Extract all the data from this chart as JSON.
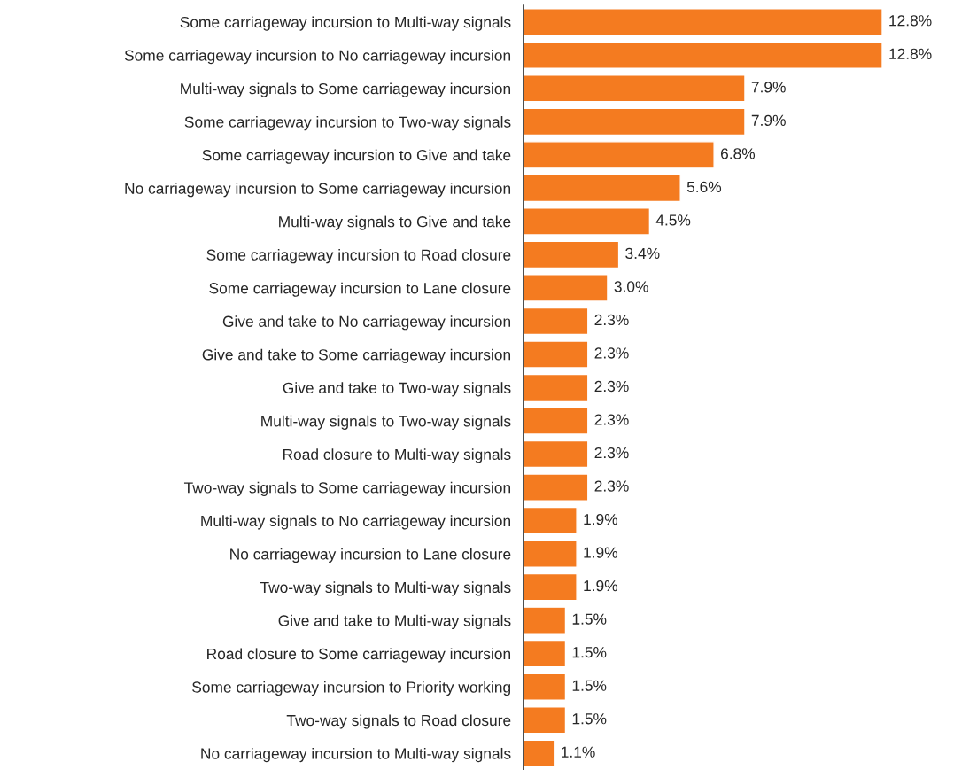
{
  "chart_data": {
    "type": "bar",
    "orientation": "horizontal",
    "color": "#f47b20",
    "categories": [
      "Some carriageway incursion to Multi-way signals",
      "Some carriageway incursion to No carriageway incursion",
      "Multi-way signals to Some carriageway incursion",
      "Some carriageway incursion to Two-way signals",
      "Some carriageway incursion to Give and take",
      "No carriageway incursion to Some carriageway incursion",
      "Multi-way signals to Give and take",
      "Some carriageway incursion to Road closure",
      "Some carriageway incursion to Lane closure",
      "Give and take to No carriageway incursion",
      "Give and take to Some carriageway incursion",
      "Give and take to Two-way signals",
      "Multi-way signals to Two-way signals",
      "Road closure to Multi-way signals",
      "Two-way signals to Some carriageway incursion",
      "Multi-way signals to No carriageway incursion",
      "No carriageway incursion to Lane closure",
      "Two-way signals to Multi-way signals",
      "Give and take to Multi-way signals",
      "Road closure to Some carriageway incursion",
      "Some carriageway incursion to Priority working",
      "Two-way signals to Road closure",
      "No carriageway incursion to Multi-way signals"
    ],
    "values": [
      12.8,
      12.8,
      7.9,
      7.9,
      6.8,
      5.6,
      4.5,
      3.4,
      3.0,
      2.3,
      2.3,
      2.3,
      2.3,
      2.3,
      2.3,
      1.9,
      1.9,
      1.9,
      1.5,
      1.5,
      1.5,
      1.5,
      1.1
    ],
    "value_labels": [
      "12.8%",
      "12.8%",
      "7.9%",
      "7.9%",
      "6.8%",
      "5.6%",
      "4.5%",
      "3.4%",
      "3.0%",
      "2.3%",
      "2.3%",
      "2.3%",
      "2.3%",
      "2.3%",
      "2.3%",
      "1.9%",
      "1.9%",
      "1.9%",
      "1.5%",
      "1.5%",
      "1.5%",
      "1.5%",
      "1.1%"
    ],
    "grid": false,
    "legend": false
  }
}
